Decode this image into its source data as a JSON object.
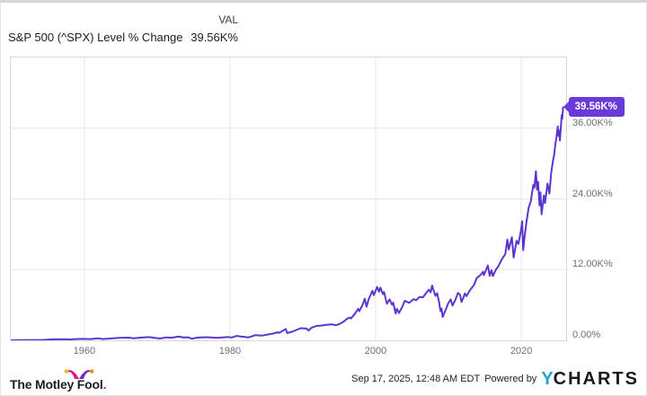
{
  "header": {
    "series_label": "S&P 500 (^SPX) Level % Change",
    "val_column": "VAL",
    "val": "39.56K%"
  },
  "callout": {
    "text": "39.56K%",
    "bg": "#6a3ad8"
  },
  "footer": {
    "motley_fool_text": "The Motley Fool",
    "motley_fool_dot": ".",
    "date": "Sep 17, 2025, 12:48 AM EDT",
    "powered_by": "Powered by",
    "ycharts_y": "Y",
    "ycharts_rest": "CHARTS"
  },
  "chart_data": {
    "type": "line",
    "title": "S&P 500 (^SPX) Level % Change",
    "xlabel": "",
    "ylabel": "",
    "unit": "K% (thousand percent)",
    "grid": true,
    "legend_position": "none",
    "xlim": [
      1949.9,
      2026.15
    ],
    "ylim": [
      0,
      48
    ],
    "x_ticks": [
      1960,
      1980,
      2000,
      2020
    ],
    "x_tick_labels": [
      "1960",
      "1980",
      "2000",
      "2020"
    ],
    "y_ticks": [
      0,
      12,
      24,
      36
    ],
    "y_tick_labels": [
      "0.00%",
      "12.00K%",
      "24.00K%",
      "36.00K%"
    ],
    "last_value_label": "39.56K%",
    "series": [
      {
        "name": "S&P 500 (^SPX) Level % Change",
        "color": "#5b35cf",
        "points": [
          [
            1950.0,
            0
          ],
          [
            1950.5,
            0.02
          ],
          [
            1951.0,
            0.035
          ],
          [
            1951.6,
            0.045
          ],
          [
            1952.3,
            0.05
          ],
          [
            1953.0,
            0.055
          ],
          [
            1953.7,
            0.04
          ],
          [
            1954.5,
            0.08
          ],
          [
            1955.3,
            0.14
          ],
          [
            1956.3,
            0.185
          ],
          [
            1957.0,
            0.17
          ],
          [
            1957.55,
            0.2
          ],
          [
            1957.95,
            0.135
          ],
          [
            1958.8,
            0.21
          ],
          [
            1959.6,
            0.245
          ],
          [
            1960.8,
            0.215
          ],
          [
            1961.95,
            0.34
          ],
          [
            1962.5,
            0.21
          ],
          [
            1963.5,
            0.3
          ],
          [
            1964.8,
            0.41
          ],
          [
            1966.1,
            0.46
          ],
          [
            1966.75,
            0.335
          ],
          [
            1967.7,
            0.45
          ],
          [
            1968.9,
            0.55
          ],
          [
            1969.6,
            0.42
          ],
          [
            1970.4,
            0.31
          ],
          [
            1971.3,
            0.5
          ],
          [
            1971.9,
            0.44
          ],
          [
            1972.95,
            0.62
          ],
          [
            1973.7,
            0.48
          ],
          [
            1974.2,
            0.52
          ],
          [
            1974.75,
            0.27
          ],
          [
            1975.5,
            0.45
          ],
          [
            1976.7,
            0.54
          ],
          [
            1978.2,
            0.42
          ],
          [
            1979.0,
            0.5
          ],
          [
            1979.8,
            0.57
          ],
          [
            1980.2,
            0.48
          ],
          [
            1980.9,
            0.75
          ],
          [
            1981.6,
            0.62
          ],
          [
            1982.55,
            0.5
          ],
          [
            1983.5,
            0.89
          ],
          [
            1984.4,
            0.81
          ],
          [
            1985.0,
            0.95
          ],
          [
            1985.9,
            1.15
          ],
          [
            1986.5,
            1.35
          ],
          [
            1986.7,
            1.25
          ],
          [
            1987.0,
            1.45
          ],
          [
            1987.65,
            1.92
          ],
          [
            1987.85,
            1.24
          ],
          [
            1988.5,
            1.45
          ],
          [
            1989.7,
            2.06
          ],
          [
            1990.5,
            2.0
          ],
          [
            1990.78,
            1.66
          ],
          [
            1991.2,
            2.15
          ],
          [
            1991.9,
            2.45
          ],
          [
            1992.5,
            2.5
          ],
          [
            1993.3,
            2.65
          ],
          [
            1994.1,
            2.7
          ],
          [
            1994.5,
            2.56
          ],
          [
            1995.0,
            2.75
          ],
          [
            1995.6,
            3.15
          ],
          [
            1996.0,
            3.6
          ],
          [
            1996.4,
            3.85
          ],
          [
            1996.6,
            3.7
          ],
          [
            1997.1,
            4.45
          ],
          [
            1997.6,
            5.35
          ],
          [
            1997.75,
            4.95
          ],
          [
            1998.2,
            6.0
          ],
          [
            1998.5,
            7.05
          ],
          [
            1998.75,
            5.7
          ],
          [
            1999.0,
            6.85
          ],
          [
            1999.3,
            7.7
          ],
          [
            1999.55,
            8.4
          ],
          [
            1999.75,
            7.65
          ],
          [
            2000.2,
            9.07
          ],
          [
            2000.45,
            8.25
          ],
          [
            2000.65,
            8.95
          ],
          [
            2001.0,
            7.85
          ],
          [
            2001.15,
            8.2
          ],
          [
            2001.55,
            6.2
          ],
          [
            2001.9,
            6.95
          ],
          [
            2002.25,
            6.05
          ],
          [
            2002.4,
            6.4
          ],
          [
            2002.75,
            4.56
          ],
          [
            2002.9,
            5.35
          ],
          [
            2003.2,
            4.65
          ],
          [
            2003.6,
            5.55
          ],
          [
            2004.0,
            6.7
          ],
          [
            2004.6,
            6.35
          ],
          [
            2005.2,
            7.0
          ],
          [
            2005.55,
            6.8
          ],
          [
            2006.0,
            7.35
          ],
          [
            2006.5,
            7.3
          ],
          [
            2007.0,
            8.15
          ],
          [
            2007.3,
            8.6
          ],
          [
            2007.55,
            8.15
          ],
          [
            2007.75,
            9.3
          ],
          [
            2008.2,
            7.55
          ],
          [
            2008.45,
            8.0
          ],
          [
            2008.7,
            6.5
          ],
          [
            2008.9,
            4.95
          ],
          [
            2009.05,
            5.4
          ],
          [
            2009.2,
            3.96
          ],
          [
            2009.55,
            5.0
          ],
          [
            2009.95,
            6.25
          ],
          [
            2010.3,
            6.95
          ],
          [
            2010.55,
            5.9
          ],
          [
            2010.95,
            6.9
          ],
          [
            2011.3,
            8.05
          ],
          [
            2011.6,
            7.7
          ],
          [
            2011.78,
            6.5
          ],
          [
            2012.0,
            7.1
          ],
          [
            2012.25,
            7.95
          ],
          [
            2012.45,
            7.5
          ],
          [
            2013.0,
            8.6
          ],
          [
            2013.5,
            9.4
          ],
          [
            2013.9,
            10.6
          ],
          [
            2014.4,
            11.1
          ],
          [
            2014.75,
            11.65
          ],
          [
            2014.85,
            11.05
          ],
          [
            2015.4,
            12.7
          ],
          [
            2015.65,
            10.95
          ],
          [
            2015.9,
            11.9
          ],
          [
            2016.1,
            10.9
          ],
          [
            2016.5,
            12.0
          ],
          [
            2016.85,
            12.55
          ],
          [
            2017.3,
            13.7
          ],
          [
            2017.8,
            14.65
          ],
          [
            2018.08,
            17.1
          ],
          [
            2018.27,
            15.4
          ],
          [
            2018.7,
            17.5
          ],
          [
            2018.95,
            14.05
          ],
          [
            2019.35,
            16.9
          ],
          [
            2019.6,
            16.35
          ],
          [
            2019.95,
            18.6
          ],
          [
            2020.12,
            20.2
          ],
          [
            2020.25,
            15.3
          ],
          [
            2020.45,
            17.6
          ],
          [
            2020.7,
            20.0
          ],
          [
            2021.0,
            22.5
          ],
          [
            2021.3,
            23.6
          ],
          [
            2021.5,
            25.3
          ],
          [
            2021.65,
            26.4
          ],
          [
            2021.8,
            25.9
          ],
          [
            2022.0,
            28.7
          ],
          [
            2022.15,
            25.6
          ],
          [
            2022.3,
            26.9
          ],
          [
            2022.5,
            22.9
          ],
          [
            2022.62,
            25.1
          ],
          [
            2022.78,
            21.4
          ],
          [
            2023.1,
            24.6
          ],
          [
            2023.25,
            23.3
          ],
          [
            2023.6,
            26.6
          ],
          [
            2023.85,
            24.9
          ],
          [
            2024.1,
            28.4
          ],
          [
            2024.35,
            30.5
          ],
          [
            2024.5,
            31.4
          ],
          [
            2024.65,
            33.0
          ],
          [
            2024.8,
            34.3
          ],
          [
            2025.0,
            36.3
          ],
          [
            2025.1,
            34.7
          ],
          [
            2025.18,
            35.6
          ],
          [
            2025.3,
            33.9
          ],
          [
            2025.45,
            36.5
          ],
          [
            2025.55,
            38.2
          ],
          [
            2025.62,
            37.6
          ],
          [
            2025.73,
            39.56
          ]
        ]
      }
    ]
  }
}
